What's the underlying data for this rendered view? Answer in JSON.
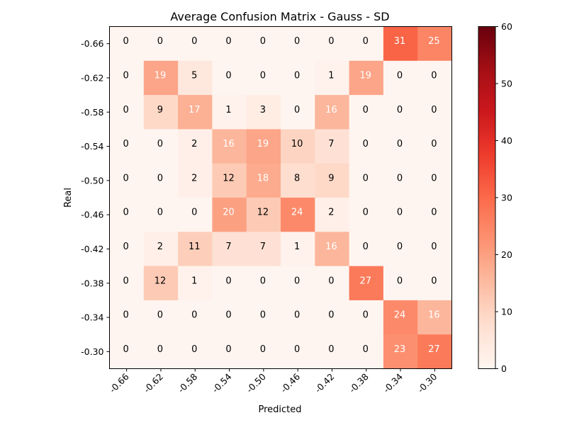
{
  "chart_data": {
    "type": "heatmap",
    "title": "Average Confusion Matrix - Gauss - SD",
    "xlabel": "Predicted",
    "ylabel": "Real",
    "x_categories": [
      "-0.66",
      "-0.62",
      "-0.58",
      "-0.54",
      "-0.50",
      "-0.46",
      "-0.42",
      "-0.38",
      "-0.34",
      "-0.30"
    ],
    "y_categories": [
      "-0.66",
      "-0.62",
      "-0.58",
      "-0.54",
      "-0.50",
      "-0.46",
      "-0.42",
      "-0.38",
      "-0.34",
      "-0.30"
    ],
    "values": [
      [
        0,
        0,
        0,
        0,
        0,
        0,
        0,
        0,
        31,
        25
      ],
      [
        0,
        19,
        5,
        0,
        0,
        0,
        1,
        19,
        0,
        0
      ],
      [
        0,
        9,
        17,
        1,
        3,
        0,
        16,
        0,
        0,
        0
      ],
      [
        0,
        0,
        2,
        16,
        19,
        10,
        7,
        0,
        0,
        0
      ],
      [
        0,
        0,
        2,
        12,
        18,
        8,
        9,
        0,
        0,
        0
      ],
      [
        0,
        0,
        0,
        20,
        12,
        24,
        2,
        0,
        0,
        0
      ],
      [
        0,
        2,
        11,
        7,
        7,
        1,
        16,
        0,
        0,
        0
      ],
      [
        0,
        12,
        1,
        0,
        0,
        0,
        0,
        27,
        0,
        0
      ],
      [
        0,
        0,
        0,
        0,
        0,
        0,
        0,
        0,
        24,
        16
      ],
      [
        0,
        0,
        0,
        0,
        0,
        0,
        0,
        0,
        23,
        27
      ]
    ],
    "colorbar": {
      "colormap": "Reds",
      "range": [
        0,
        60
      ],
      "ticks": [
        "0",
        "10",
        "20",
        "30",
        "40",
        "50",
        "60"
      ]
    },
    "grid": false
  }
}
